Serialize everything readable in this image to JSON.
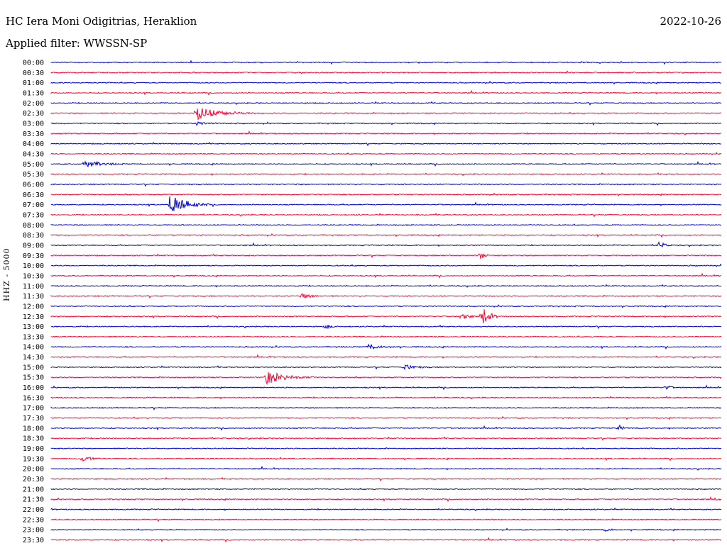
{
  "header": {
    "station": "HC Iera Moni Odigitrias, Heraklion",
    "filter_label": "Applied filter:",
    "filter_value": "WWSSN-SP",
    "date": "2022-10-26"
  },
  "channel_label": "HHZ - 5000",
  "colors": {
    "even_row": "#0000dd",
    "odd_row": "#ff0033"
  },
  "chart_data": {
    "type": "helicorder",
    "title": "HC Iera Moni Odigitrias, Heraklion",
    "date": "2022-10-26",
    "ylabel": "HHZ - 5000",
    "row_minutes": 30,
    "rows": [
      "00:00",
      "00:30",
      "01:00",
      "01:30",
      "02:00",
      "02:30",
      "03:00",
      "03:30",
      "04:00",
      "04:30",
      "05:00",
      "05:30",
      "06:00",
      "06:30",
      "07:00",
      "07:30",
      "08:00",
      "08:30",
      "09:00",
      "09:30",
      "10:00",
      "10:30",
      "11:00",
      "11:30",
      "12:00",
      "12:30",
      "13:00",
      "13:30",
      "14:00",
      "14:30",
      "15:00",
      "15:30",
      "16:00",
      "16:30",
      "17:00",
      "17:30",
      "18:00",
      "18:30",
      "19:00",
      "19:30",
      "20:00",
      "20:30",
      "21:00",
      "21:30",
      "22:00",
      "22:30",
      "23:00",
      "23:30"
    ],
    "events": [
      {
        "row": "02:30",
        "minute": 6.5,
        "duration_min": 2.5,
        "amplitude": 10
      },
      {
        "row": "03:00",
        "minute": 6.5,
        "duration_min": 1.5,
        "amplitude": 2
      },
      {
        "row": "05:00",
        "minute": 1.5,
        "duration_min": 1.8,
        "amplitude": 5
      },
      {
        "row": "07:00",
        "minute": 5.3,
        "duration_min": 1.8,
        "amplitude": 16
      },
      {
        "row": "09:30",
        "minute": 19.2,
        "duration_min": 0.5,
        "amplitude": 7
      },
      {
        "row": "09:00",
        "minute": 27.2,
        "duration_min": 0.6,
        "amplitude": 6
      },
      {
        "row": "12:30",
        "minute": 18.4,
        "duration_min": 0.6,
        "amplitude": 8
      },
      {
        "row": "12:30",
        "minute": 19.3,
        "duration_min": 0.8,
        "amplitude": 13
      },
      {
        "row": "13:00",
        "minute": 12.3,
        "duration_min": 0.4,
        "amplitude": 5
      },
      {
        "row": "14:00",
        "minute": 14.2,
        "duration_min": 1.3,
        "amplitude": 4
      },
      {
        "row": "15:00",
        "minute": 15.8,
        "duration_min": 1.2,
        "amplitude": 4
      },
      {
        "row": "15:30",
        "minute": 9.6,
        "duration_min": 2.2,
        "amplitude": 10
      },
      {
        "row": "18:00",
        "minute": 25.4,
        "duration_min": 0.4,
        "amplitude": 5
      },
      {
        "row": "19:30",
        "minute": 1.4,
        "duration_min": 0.8,
        "amplitude": 6
      },
      {
        "row": "11:30",
        "minute": 11.2,
        "duration_min": 1.4,
        "amplitude": 3
      },
      {
        "row": "16:00",
        "minute": 27.5,
        "duration_min": 0.6,
        "amplitude": 3
      },
      {
        "row": "23:00",
        "minute": 24.8,
        "duration_min": 0.6,
        "amplitude": 3
      },
      {
        "row": "21:30",
        "minute": 29.8,
        "duration_min": 0.3,
        "amplitude": 3
      }
    ]
  }
}
